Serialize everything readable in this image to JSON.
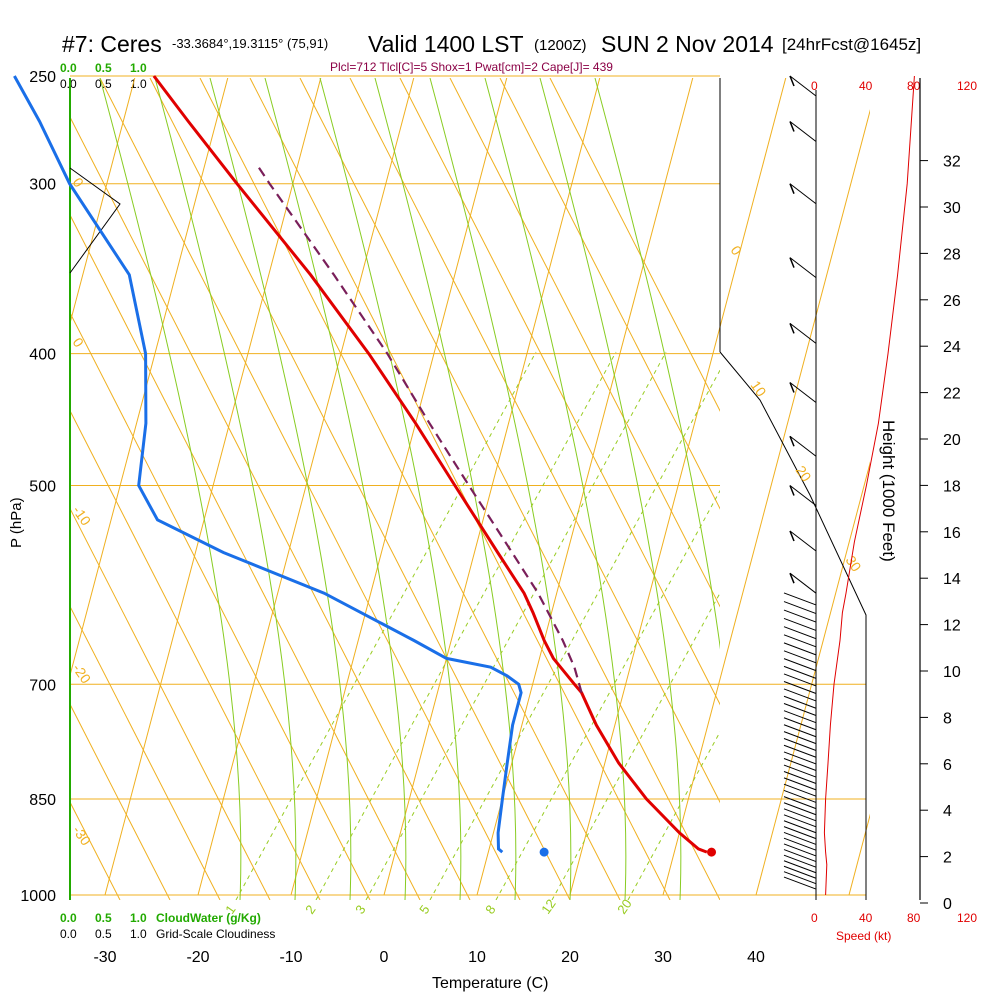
{
  "header": {
    "station": "#7: Ceres",
    "coords": "-33.3684°,19.3115° (75,91)",
    "valid": "Valid 1400 LST",
    "utc": "(1200Z)",
    "date": "SUN 2 Nov 2014",
    "forecast": "[24hrFcst@1645z]",
    "indices": "Plcl=712 Tlcl[C]=5 Shox=1 Pwat[cm]=2 Cape[J]= 439"
  },
  "colors": {
    "temperature": "#e00000",
    "dewpoint": "#1a6fe8",
    "parcel": "#7a1f5a",
    "isobar": "#f0b020",
    "dry_adiabat": "#88cc22",
    "mixing_ratio": "#99cc22",
    "cloud": "#22aa00"
  },
  "chart_data": {
    "type": "line",
    "skewt": true,
    "xlabel": "Temperature (C)",
    "ylabel": "P (hPa)",
    "xlim": [
      -33,
      48
    ],
    "ylim": [
      1000,
      250
    ],
    "x_ticks": [
      "-30",
      "-20",
      "-10",
      "0",
      "10",
      "20",
      "30",
      "40"
    ],
    "x_tick_values": [
      -30,
      -20,
      -10,
      0,
      10,
      20,
      30,
      40
    ],
    "p_ticks": [
      "250",
      "300",
      "400",
      "500",
      "700",
      "850",
      "1000"
    ],
    "p_tick_values": [
      250,
      300,
      400,
      500,
      700,
      850,
      1000
    ],
    "isotherm_labels": [
      "0",
      "0",
      "-10",
      "-20",
      "-30",
      "0",
      "10",
      "20",
      "30"
    ],
    "mixing_ratio_labels": [
      "1",
      "2",
      "3",
      "5",
      "8",
      "12",
      "20"
    ],
    "series": [
      {
        "name": "Temperature",
        "p": [
          930,
          925,
          900,
          850,
          800,
          750,
          710,
          700,
          670,
          650,
          620,
          600,
          560,
          500,
          450,
          400,
          350,
          300,
          270,
          250
        ],
        "t": [
          33.5,
          32.5,
          30.0,
          25.5,
          21.5,
          18.0,
          15.5,
          14.5,
          11.5,
          10.0,
          8.0,
          6.5,
          2.5,
          -4.0,
          -10.0,
          -17.0,
          -25.5,
          -36.0,
          -43.0,
          -48.0
        ]
      },
      {
        "name": "Dewpoint",
        "p": [
          930,
          925,
          900,
          850,
          800,
          750,
          710,
          700,
          690,
          680,
          670,
          650,
          600,
          560,
          530,
          500,
          450,
          400,
          350,
          300,
          270,
          250
        ],
        "t": [
          11.5,
          11.0,
          10.5,
          10.0,
          9.5,
          9.0,
          9.0,
          8.5,
          7.0,
          5.0,
          0.0,
          -4.0,
          -15.0,
          -27.0,
          -35.0,
          -38.0,
          -39.0,
          -41.0,
          -45.0,
          -54.0,
          -59.0,
          -63.0
        ]
      },
      {
        "name": "Parcel",
        "p": [
          710,
          680,
          650,
          600,
          550,
          500,
          450,
          400,
          350,
          300,
          290
        ],
        "t": [
          15.5,
          14.0,
          12.0,
          8.0,
          3.0,
          -2.5,
          -8.5,
          -15.0,
          -23.0,
          -32.5,
          -34.5
        ]
      }
    ],
    "surface_points": {
      "p": 930,
      "t": 34.0,
      "td": 16.0
    },
    "height_axis": {
      "label": "Height (1000 Feet)",
      "ticks": [
        "0",
        "2",
        "4",
        "6",
        "8",
        "10",
        "12",
        "14",
        "16",
        "18",
        "20",
        "22",
        "24",
        "26",
        "28",
        "30",
        "32"
      ]
    },
    "speed_axis": {
      "label": "Speed (kt)",
      "ticks": [
        "0",
        "40",
        "80",
        "120"
      ],
      "profile": {
        "p": [
          1000,
          950,
          930,
          900,
          850,
          800,
          750,
          700,
          650,
          620,
          600,
          550,
          500,
          450,
          400,
          350,
          300,
          250
        ],
        "speed": [
          8,
          9,
          8,
          7,
          8,
          10,
          12,
          15,
          20,
          22,
          25,
          32,
          42,
          52,
          60,
          68,
          76,
          82
        ]
      }
    },
    "cloud_axis": {
      "label": "CloudWater (g/Kg)",
      "ticks": [
        "0.0",
        "0.5",
        "1.0"
      ],
      "cloudiness_label": "Grid-Scale Cloudiness",
      "cloudiness_ticks": [
        "0.0",
        "0.5",
        "1.0"
      ]
    }
  }
}
